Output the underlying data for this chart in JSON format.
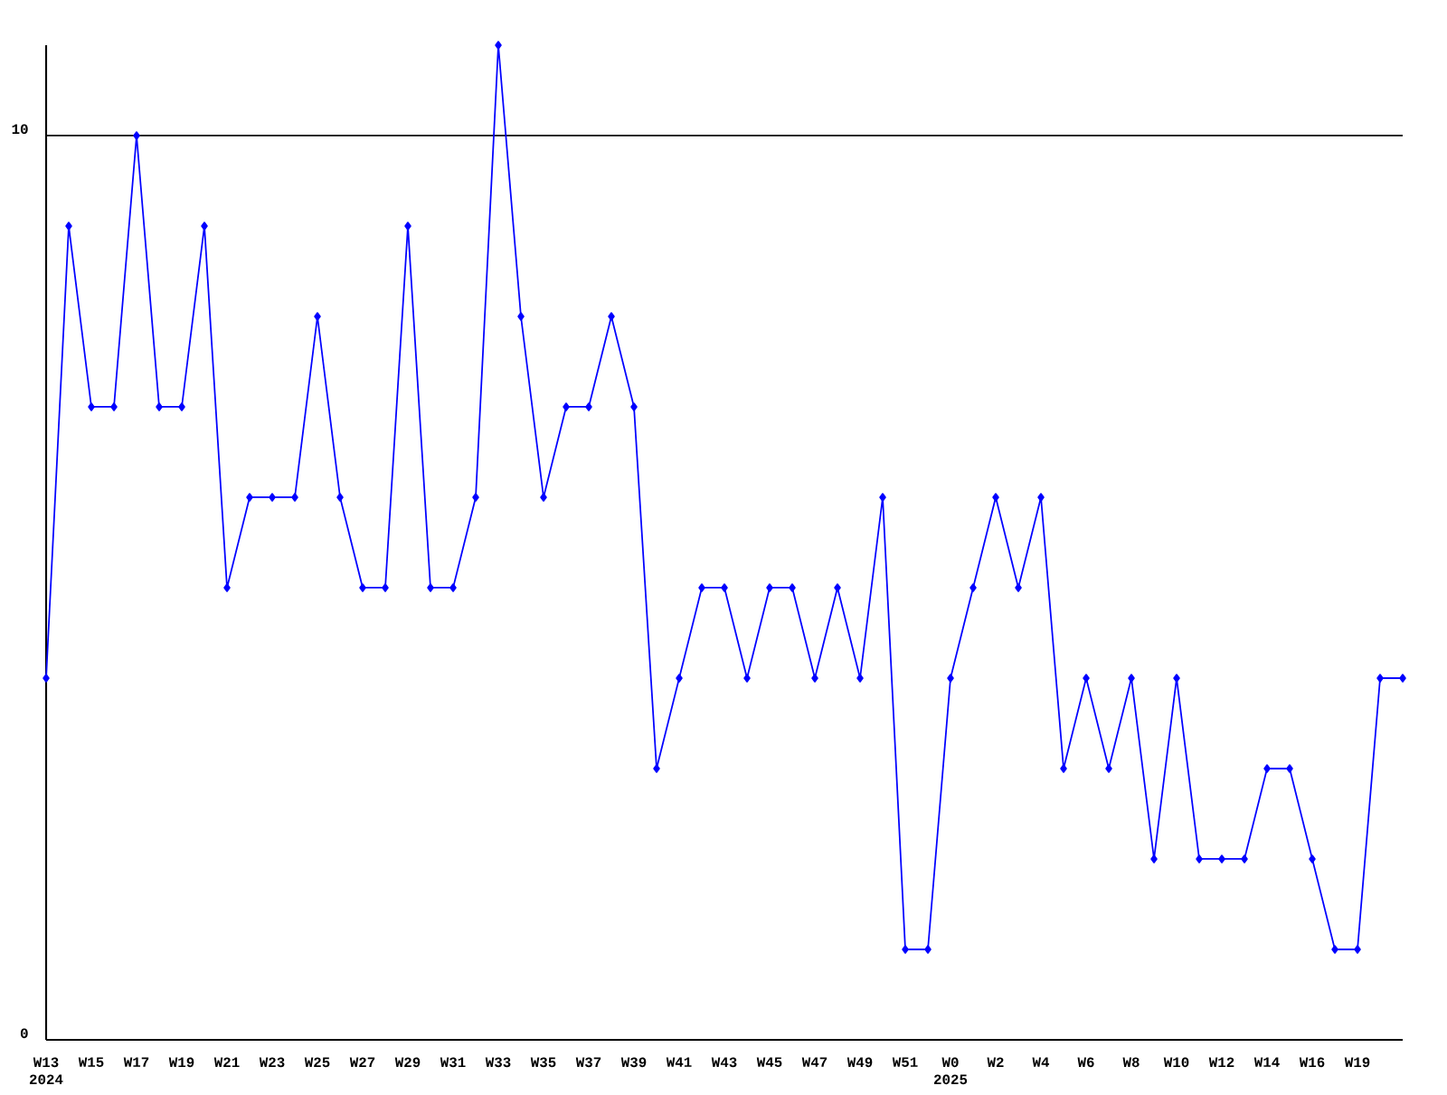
{
  "chart_data": {
    "type": "line",
    "categories": [
      "W13 2024",
      null,
      "W15",
      null,
      "W17",
      null,
      "W19",
      null,
      "W21",
      null,
      "W23",
      null,
      "W25",
      null,
      "W27",
      null,
      "W29",
      null,
      "W31",
      null,
      "W33",
      null,
      "W35",
      null,
      "W37",
      null,
      "W39",
      null,
      "W41",
      null,
      "W43",
      null,
      "W45",
      null,
      "W47",
      null,
      "W49",
      null,
      "W51",
      null,
      "W0 2025",
      null,
      "W2",
      null,
      "W4",
      null,
      "W6",
      null,
      "W8",
      null,
      "W10",
      null,
      "W12",
      null,
      "W14",
      null,
      "W16",
      null,
      "W19",
      null,
      null
    ],
    "values": [
      4,
      9,
      7,
      7,
      10,
      7,
      7,
      9,
      5,
      6,
      6,
      6,
      8,
      6,
      5,
      5,
      9,
      5,
      5,
      6,
      11,
      8,
      6,
      7,
      7,
      8,
      7,
      3,
      4,
      5,
      5,
      4,
      5,
      5,
      4,
      5,
      4,
      6,
      1,
      1,
      4,
      5,
      6,
      5,
      6,
      3,
      4,
      3,
      4,
      2,
      4,
      2,
      2,
      2,
      3,
      3,
      2,
      1,
      1,
      4,
      4
    ],
    "color": "#0000ff",
    "marker": "diamond",
    "grid": "y",
    "ylim": [
      0,
      11
    ],
    "yticks": [
      0,
      10
    ]
  }
}
